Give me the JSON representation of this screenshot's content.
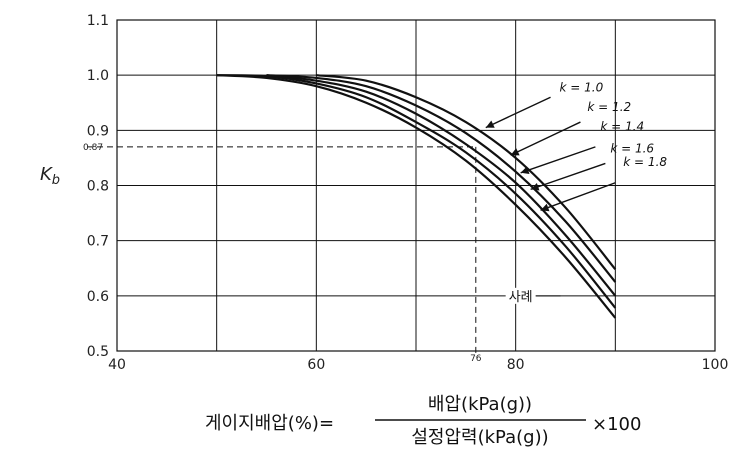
{
  "chart_data": {
    "type": "line",
    "x": [
      50,
      55,
      60,
      65,
      70,
      75,
      80,
      85,
      90
    ],
    "series": [
      {
        "name": "k = 1.0",
        "values": [
          null,
          null,
          1.0,
          0.99,
          0.96,
          0.915,
          0.85,
          0.76,
          0.648
        ]
      },
      {
        "name": "k = 1.2",
        "values": [
          null,
          1.0,
          0.995,
          0.98,
          0.945,
          0.895,
          0.825,
          0.735,
          0.625
        ]
      },
      {
        "name": "k = 1.4",
        "values": [
          null,
          1.0,
          0.99,
          0.97,
          0.93,
          0.875,
          0.805,
          0.71,
          0.6
        ]
      },
      {
        "name": "k = 1.6",
        "values": [
          1.0,
          0.998,
          0.985,
          0.96,
          0.915,
          0.86,
          0.785,
          0.69,
          0.578
        ]
      },
      {
        "name": "k = 1.8",
        "values": [
          1.0,
          0.995,
          0.98,
          0.95,
          0.905,
          0.845,
          0.765,
          0.67,
          0.56
        ]
      }
    ],
    "xlim": [
      40,
      100
    ],
    "ylim": [
      0.5,
      1.1
    ],
    "x_ticks": [
      "40",
      "60",
      "80",
      "100"
    ],
    "y_ticks": [
      "0.5",
      "0.6",
      "0.7",
      "0.8",
      "0.9",
      "1.0",
      "1.1"
    ],
    "ylabel": "Kb",
    "grid": true,
    "annotations": {
      "example_label": "사례",
      "example_x": 76,
      "example_y": 0.87,
      "example_x_label": "76",
      "example_y_label": "0.87"
    }
  },
  "formula": {
    "left": "게이지배압(%)=",
    "numerator": "배압(kPa(g))",
    "denominator": "설정압력(kPa(g))",
    "multiplier": "×100"
  }
}
